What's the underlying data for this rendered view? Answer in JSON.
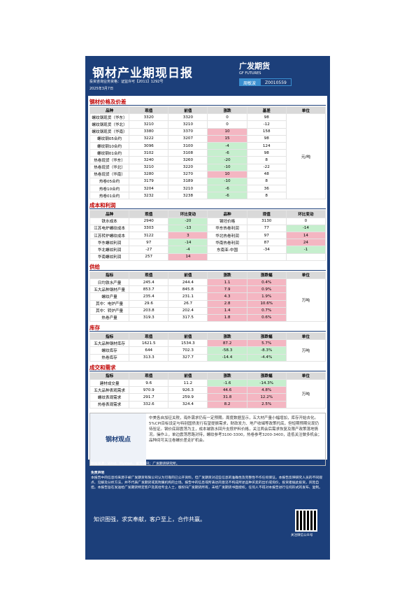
{
  "header": {
    "title": "钢材产业期现日报",
    "logo_cn": "广发期货",
    "logo_en": "GF FUTURES",
    "license": "投资咨询业务资格：证监许可【2011】1292号",
    "date": "2025年3月7日",
    "analyst_label": "周敏波",
    "analyst_id": "Z0010559"
  },
  "sections": [
    {
      "title": "钢材价格及价差",
      "columns": [
        "品种",
        "现值",
        "前值",
        "涨跌",
        "基差",
        "单位"
      ],
      "unit": "元/吨",
      "change_cols": [
        3
      ],
      "rows": [
        [
          "螺纹钢现货（华东）",
          3320,
          3320,
          0,
          98
        ],
        [
          "螺纹钢现货（华北）",
          3210,
          3210,
          0,
          -12
        ],
        [
          "螺纹钢现货（华南）",
          3380,
          3370,
          10,
          158
        ],
        [
          "螺纹钢05合约",
          3222,
          3207,
          15,
          98
        ],
        [
          "螺纹钢10合约",
          3096,
          3100,
          -4,
          124
        ],
        [
          "螺纹钢01合约",
          3102,
          3108,
          -6,
          98
        ],
        [
          "热卷现货（华东）",
          3240,
          3260,
          -20,
          8
        ],
        [
          "热卷现货（华北）",
          3210,
          3220,
          -10,
          -22
        ],
        [
          "热卷现货（华南）",
          3280,
          3270,
          10,
          48
        ],
        [
          "热卷05合约",
          3179,
          3189,
          -10,
          8
        ],
        [
          "热卷10合约",
          3204,
          3210,
          -6,
          36
        ],
        [
          "热卷01合约",
          3232,
          3238,
          -6,
          8
        ]
      ]
    },
    {
      "title": "成本和利润",
      "columns": [
        "品种",
        "现值",
        "环比变动",
        "品种",
        "现值",
        "环比变动"
      ],
      "change_cols": [
        2,
        5
      ],
      "rows": [
        [
          "铁水成本",
          2940,
          -20,
          "钢坯价格",
          3130,
          0
        ],
        [
          "江苏电炉螺纹成本",
          3303,
          -13,
          "华东热卷利润",
          77,
          -14
        ],
        [
          "江苏转炉螺纹成本",
          3122,
          3,
          "华北热卷利润",
          97,
          14
        ],
        [
          "华东螺纹利润",
          97,
          -14,
          "华南热卷利润",
          87,
          24
        ],
        [
          "华北螺纹利润",
          -27,
          -4,
          "东南亚-中国",
          -34,
          -1
        ],
        [
          "华南螺纹利润",
          257,
          14
        ]
      ]
    },
    {
      "title": "供给",
      "columns": [
        "指标",
        "现值",
        "前值",
        "涨跌",
        "涨跌幅",
        "单位"
      ],
      "unit": "万吨",
      "change_cols": [
        3,
        4
      ],
      "rows": [
        [
          "日均铁水产量",
          245.4,
          244.4,
          1.1,
          "0.4%"
        ],
        [
          "五大品种钢材产量",
          853.7,
          845.8,
          7.9,
          "0.9%"
        ],
        [
          "螺纹产量",
          235.4,
          231.1,
          4.3,
          "1.9%"
        ],
        [
          "其中：电炉产量",
          29.6,
          26.7,
          2.8,
          "10.6%"
        ],
        [
          "其中：转炉产量",
          203.8,
          202.4,
          1.4,
          "0.7%"
        ],
        [
          "热卷产量",
          319.3,
          317.5,
          1.8,
          "0.6%"
        ]
      ]
    },
    {
      "title": "库存",
      "columns": [
        "指标",
        "现值",
        "前值",
        "涨跌",
        "涨跌幅",
        "单位"
      ],
      "unit": "万吨",
      "change_cols": [
        3,
        4
      ],
      "rows": [
        [
          "五大品种钢材库存",
          1621.5,
          1534.3,
          87.2,
          "5.7%"
        ],
        [
          "螺纹库存",
          644.0,
          702.3,
          -58.3,
          "-8.3%"
        ],
        [
          "热卷库存",
          313.3,
          327.7,
          -14.4,
          "-4.4%"
        ]
      ]
    },
    {
      "title": "成交和需求",
      "columns": [
        "指标",
        "现值",
        "前值",
        "涨跌",
        "涨跌幅",
        "单位"
      ],
      "unit": "万吨",
      "change_cols": [
        3,
        4
      ],
      "rows": [
        [
          "建材成交量",
          9.6,
          11.2,
          -1.6,
          "-14.3%"
        ],
        [
          "五大品种表观需求",
          970.9,
          926.3,
          44.6,
          "4.8%"
        ],
        [
          "螺纹表观需求",
          291.7,
          259.9,
          31.8,
          "12.2%"
        ],
        [
          "热卷表观需求",
          332.6,
          324.4,
          8.2,
          "2.5%"
        ]
      ]
    }
  ],
  "view": {
    "label": "钢材观点",
    "text": "中美各自加征关税，海外需求仍有一定预期。周度数据显示，五大材产量小幅增加，库存开始去化。5%CPI目标设定与特别国债发行有望提振需求，财政发力、地产收储等政策托底，但短期预期兑现仍待验证。钢价底部震荡为主，成本端铁水回升支撑炉料价格，关注两会后需求恢复及限产政策落地情况。操作上，单边震荡思路对待，螺纹参考3100-3300，热卷参考3200-3400，逢低关注做多机会；品种间可关注卷螺价差走扩机会。"
  },
  "footer": {
    "source": "数据来源：Wind、Mysteel、富宝资讯；广发期货研究所。",
    "disclaimer_title": "免责声明",
    "disclaimer": "本报告中的信息均来源于被广发期货有限公司认为可靠的已公开资料，但广发期货对这些信息的准确性及完整性不作任何保证。本报告反映研究人员的不同观点、见解及分析方法，并不代表广发期货或其附属机构的立场。报告中的信息或所表达的意见不构成所述品种买卖的出价或询价，投资者据此投资，风险自担。本报告旨在发送给广发期货特定客户及其他专业人士，版权归广发期货所有，未经广发期货书面授权，任何人不得对本报告进行任何形式的发布、复制。",
    "slogan": "知识图强，求实奉献，客户至上，合作共赢。",
    "qr_caption": "关注微信公众号"
  }
}
